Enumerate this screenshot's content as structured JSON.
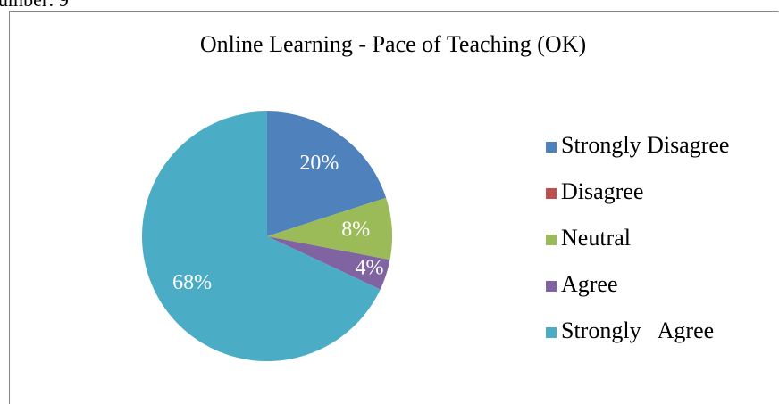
{
  "caption": "umber: 9",
  "chart_data": {
    "type": "pie",
    "title": "Online Learning - Pace of Teaching (OK)",
    "categories": [
      "Strongly Disagree",
      "Disagree",
      "Neutral",
      "Agree",
      "Strongly   Agree"
    ],
    "values": [
      20,
      0,
      8,
      4,
      68
    ],
    "value_labels": [
      "20%",
      null,
      "8%",
      "4%",
      "68%"
    ],
    "colors": [
      "#4f81bd",
      "#c0504d",
      "#9bbb59",
      "#8064a2",
      "#4bacc6"
    ],
    "legend": "right"
  }
}
